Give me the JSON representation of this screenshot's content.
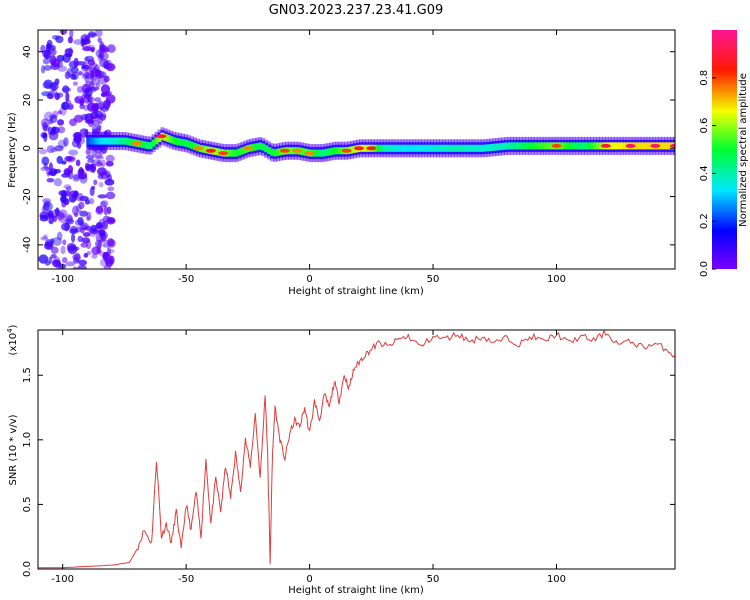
{
  "title": "GN03.2023.237.23.41.G09",
  "colorbar": {
    "label": "Normalized spectral amplitude",
    "ticks": [
      "0.0",
      "0.2",
      "0.4",
      "0.6",
      "0.8"
    ],
    "tick_values": [
      0.0,
      0.2,
      0.4,
      0.6,
      0.8
    ],
    "range": [
      0,
      1
    ],
    "colormap": "gist_rainbow (violet → blue → cyan → green → yellow → red → pink)"
  },
  "chart_data": [
    {
      "type": "heatmap",
      "xlabel": "Height of straight line (km)",
      "ylabel": "Frequency (Hz)",
      "xlim": [
        -110,
        148
      ],
      "ylim": [
        -50,
        49
      ],
      "xticks": [
        "-100",
        "-50",
        "0",
        "50",
        "100"
      ],
      "xtick_values": [
        -100,
        -50,
        0,
        50,
        100
      ],
      "yticks": [
        "40",
        "20",
        "0",
        "-20",
        "-40"
      ],
      "ytick_values": [
        40,
        20,
        0,
        -20,
        -40
      ],
      "ridge": {
        "x": [
          -90,
          -85,
          -80,
          -75,
          -70,
          -65,
          -60,
          -55,
          -50,
          -45,
          -40,
          -35,
          -30,
          -25,
          -20,
          -15,
          -10,
          -5,
          0,
          5,
          10,
          15,
          20,
          25,
          30,
          40,
          50,
          60,
          70,
          80,
          90,
          100,
          110,
          120,
          130,
          140,
          148
        ],
        "freq": [
          3,
          3,
          3,
          3,
          2,
          1,
          5,
          3,
          2,
          0,
          -1,
          -2,
          -2,
          0,
          1,
          -2,
          -1,
          -1,
          -2,
          -2,
          -1,
          -1,
          0,
          0,
          0,
          0,
          0,
          0,
          0,
          1,
          1,
          1,
          1,
          1,
          1,
          1,
          1
        ],
        "amplitude": [
          0.3,
          0.45,
          0.5,
          0.6,
          0.75,
          0.6,
          0.9,
          0.7,
          0.65,
          0.75,
          0.85,
          0.8,
          0.7,
          0.75,
          0.65,
          0.7,
          0.8,
          0.75,
          0.75,
          0.6,
          0.7,
          0.8,
          0.9,
          0.85,
          0.55,
          0.45,
          0.5,
          0.55,
          0.5,
          0.55,
          0.7,
          0.8,
          0.6,
          0.9,
          0.95,
          0.95,
          0.95
        ]
      },
      "noise_region_x": [
        -108,
        -80
      ]
    },
    {
      "type": "line",
      "xlabel": "Height of straight line (km)",
      "ylabel": "SNR (10 * v/v)",
      "y_exponent_label": "(x10",
      "y_exponent_power": "4",
      "xlim": [
        -110,
        148
      ],
      "ylim": [
        0,
        1.85
      ],
      "xticks": [
        "-100",
        "-50",
        "0",
        "50",
        "100"
      ],
      "xtick_values": [
        -100,
        -50,
        0,
        50,
        100
      ],
      "yticks": [
        "0.0",
        "0.5",
        "1.0",
        "1.5"
      ],
      "ytick_values": [
        0,
        0.5,
        1.0,
        1.5
      ],
      "color": "#e03c3c",
      "series": [
        {
          "x": [
            -110,
            -100,
            -90,
            -80,
            -73,
            -70,
            -67,
            -64,
            -62,
            -60,
            -58,
            -56,
            -54,
            -52,
            -50,
            -48,
            -46,
            -44,
            -42,
            -40,
            -38,
            -36,
            -34,
            -32,
            -30,
            -28,
            -26,
            -24,
            -22,
            -20,
            -18,
            -17,
            -16,
            -15,
            -14,
            -12,
            -10,
            -8,
            -6,
            -4,
            -2,
            0,
            2,
            4,
            6,
            8,
            10,
            12,
            14,
            16,
            18,
            20,
            22,
            25,
            28,
            32,
            36,
            40,
            45,
            50,
            55,
            60,
            65,
            70,
            75,
            80,
            85,
            90,
            95,
            100,
            105,
            110,
            115,
            120,
            125,
            130,
            135,
            140,
            145,
            148
          ],
          "y": [
            0.01,
            0.01,
            0.02,
            0.03,
            0.05,
            0.15,
            0.3,
            0.2,
            0.85,
            0.25,
            0.35,
            0.2,
            0.45,
            0.15,
            0.5,
            0.3,
            0.6,
            0.25,
            0.85,
            0.35,
            0.7,
            0.45,
            0.8,
            0.55,
            0.9,
            0.6,
            1.0,
            0.8,
            1.2,
            0.7,
            1.35,
            0.9,
            0.05,
            0.9,
            1.25,
            1.0,
            0.85,
            1.05,
            1.15,
            1.1,
            1.25,
            1.05,
            1.3,
            1.15,
            1.35,
            1.25,
            1.45,
            1.3,
            1.5,
            1.4,
            1.55,
            1.6,
            1.65,
            1.7,
            1.75,
            1.72,
            1.78,
            1.8,
            1.72,
            1.8,
            1.78,
            1.82,
            1.76,
            1.8,
            1.75,
            1.79,
            1.74,
            1.8,
            1.76,
            1.82,
            1.75,
            1.8,
            1.77,
            1.83,
            1.74,
            1.76,
            1.72,
            1.74,
            1.7,
            1.64
          ]
        }
      ]
    }
  ]
}
